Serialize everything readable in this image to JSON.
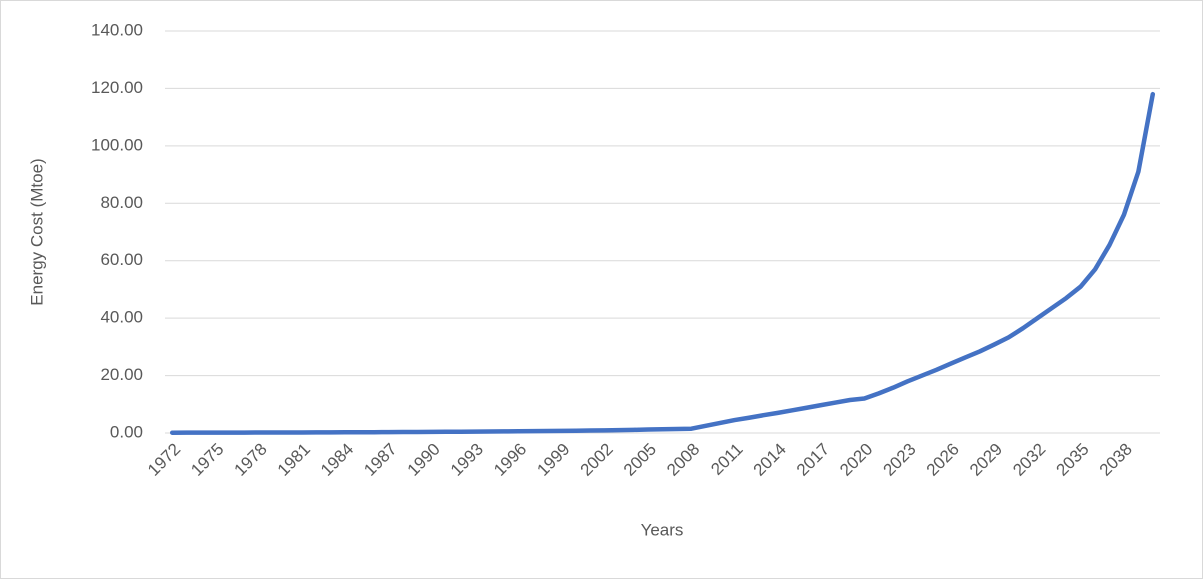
{
  "chart_data": {
    "type": "line",
    "y_label": "Energy Cost (Mtoe)",
    "x_label": "Years",
    "categories": [
      "1972",
      null,
      null,
      "1975",
      null,
      null,
      "1978",
      null,
      null,
      "1981",
      null,
      null,
      "1984",
      null,
      null,
      "1987",
      null,
      null,
      "1990",
      null,
      null,
      "1993",
      null,
      null,
      "1996",
      null,
      null,
      "1999",
      null,
      null,
      "2002",
      null,
      null,
      "2005",
      null,
      null,
      "2008",
      null,
      null,
      "2011",
      null,
      null,
      "2014",
      null,
      null,
      "2017",
      null,
      null,
      "2020",
      null,
      null,
      "2023",
      null,
      null,
      "2026",
      null,
      null,
      "2029",
      null,
      null,
      "2032",
      null,
      null,
      "2035",
      null,
      null,
      "2038",
      null,
      null
    ],
    "series": [
      {
        "color": "#4472c4",
        "values": [
          0.1,
          0.11,
          0.12,
          0.13,
          0.14,
          0.15,
          0.16,
          0.17,
          0.18,
          0.19,
          0.2,
          0.22,
          0.24,
          0.26,
          0.28,
          0.3,
          0.33,
          0.36,
          0.39,
          0.42,
          0.45,
          0.48,
          0.52,
          0.56,
          0.6,
          0.64,
          0.68,
          0.72,
          0.78,
          0.85,
          0.92,
          1.0,
          1.1,
          1.2,
          1.3,
          1.4,
          1.5,
          2.5,
          3.5,
          4.5,
          5.3,
          6.2,
          7.0,
          7.9,
          8.8,
          9.7,
          10.6,
          11.5,
          12.0,
          13.8,
          15.8,
          18.0,
          20.0,
          22.0,
          24.2,
          26.3,
          28.4,
          30.8,
          33.3,
          36.5,
          40.0,
          43.5,
          47.0,
          51.0,
          57.0,
          65.5,
          76.0,
          91.0,
          118.0
        ]
      }
    ],
    "ylim": [
      0,
      140
    ],
    "yticks": [
      {
        "value": 0,
        "label": "0.00"
      },
      {
        "value": 20,
        "label": "20.00"
      },
      {
        "value": 40,
        "label": "40.00"
      },
      {
        "value": 60,
        "label": "60.00"
      },
      {
        "value": 80,
        "label": "80.00"
      },
      {
        "value": 100,
        "label": "100.00"
      },
      {
        "value": 120,
        "label": "120.00"
      },
      {
        "value": 140,
        "label": "140.00"
      }
    ],
    "grid": true
  }
}
